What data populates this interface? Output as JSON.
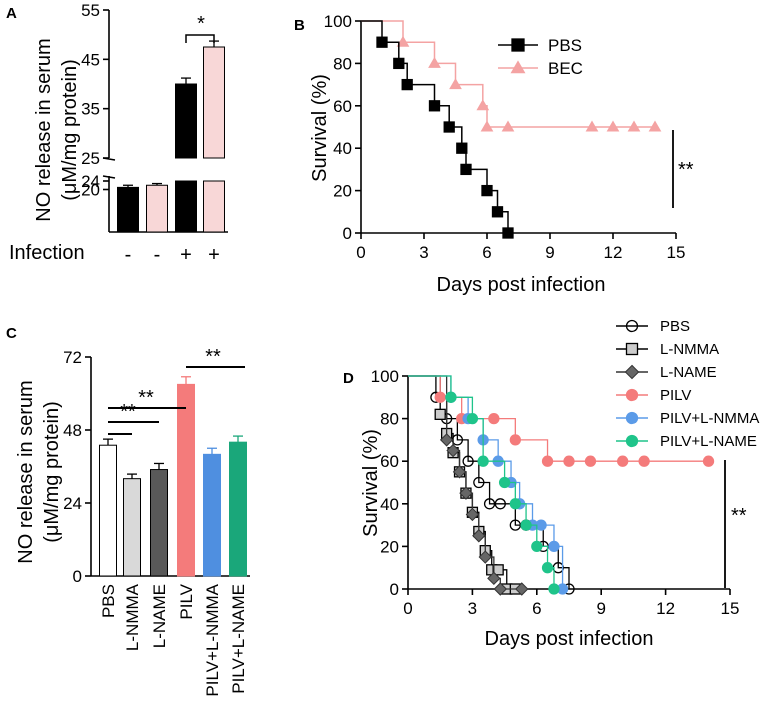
{
  "chart_data": [
    {
      "panel": "A",
      "type": "bar",
      "ylabel": "NO release in serum (μM/mg protein)",
      "xlabel": "Infection",
      "categories": [
        "-",
        "-",
        "+",
        "+"
      ],
      "values": [
        21,
        22,
        40,
        47.5
      ],
      "errors": [
        1.0,
        0.8,
        1.2,
        1.2
      ],
      "colors": [
        "#000000",
        "#f8d7d7",
        "#000000",
        "#f8d7d7"
      ],
      "y_ticks_low": [
        "20",
        "24"
      ],
      "y_ticks_high": [
        "25",
        "35",
        "45",
        "55"
      ],
      "y_break": [
        24,
        25
      ],
      "significance": "*"
    },
    {
      "panel": "B",
      "type": "line",
      "xlabel": "Days post infection",
      "ylabel": "Survival (%)",
      "xlim": [
        0,
        15
      ],
      "ylim": [
        0,
        100
      ],
      "x_ticks": [
        "0",
        "3",
        "6",
        "9",
        "12",
        "15"
      ],
      "y_ticks": [
        "0",
        "20",
        "40",
        "60",
        "80",
        "100"
      ],
      "series": [
        {
          "name": "PBS",
          "color": "#000000",
          "marker": "square",
          "x": [
            0,
            1,
            1.8,
            2.2,
            3.5,
            4.2,
            4.8,
            5.0,
            6.0,
            6.5,
            7.0
          ],
          "y": [
            100,
            90,
            80,
            70,
            60,
            50,
            40,
            30,
            20,
            10,
            0
          ]
        },
        {
          "name": "BEC",
          "color": "#f4a3a3",
          "marker": "triangle",
          "x": [
            0,
            2,
            3.5,
            4.5,
            5.8,
            6.0,
            7.0,
            11,
            12,
            13,
            14
          ],
          "y": [
            100,
            90,
            80,
            70,
            60,
            50,
            50,
            50,
            50,
            50,
            50
          ]
        }
      ],
      "significance": "**"
    },
    {
      "panel": "C",
      "type": "bar",
      "ylabel": "NO release in serum (μM/mg protein)",
      "ylim": [
        0,
        72
      ],
      "y_ticks": [
        "0",
        "24",
        "48",
        "72"
      ],
      "categories": [
        "PBS",
        "L-NMMA",
        "L-NAME",
        "PILV",
        "PILV+L-NMMA",
        "PILV+L-NAME"
      ],
      "values": [
        43,
        32,
        35,
        63,
        40,
        44
      ],
      "errors": [
        2,
        1.5,
        2,
        2.5,
        2,
        2
      ],
      "colors": [
        "#ffffff",
        "#d9d9d9",
        "#595959",
        "#f47b7b",
        "#4f8fe0",
        "#1aa77a"
      ],
      "significance": [
        "**",
        "**",
        "**",
        "**"
      ]
    },
    {
      "panel": "D",
      "type": "line",
      "xlabel": "Days post infection",
      "ylabel": "Survival (%)",
      "xlim": [
        0,
        15
      ],
      "ylim": [
        0,
        100
      ],
      "x_ticks": [
        "0",
        "3",
        "6",
        "9",
        "12",
        "15"
      ],
      "y_ticks": [
        "0",
        "20",
        "40",
        "60",
        "80",
        "100"
      ],
      "series": [
        {
          "name": "PBS",
          "color": "#000000",
          "fill": "none",
          "marker": "circle",
          "x": [
            0,
            1.3,
            1.8,
            2.3,
            2.8,
            3.3,
            3.8,
            4.3,
            5.0,
            5.5,
            6.3,
            7.0,
            7.5
          ],
          "y": [
            100,
            90,
            80,
            70,
            60,
            50,
            40,
            40,
            30,
            30,
            20,
            10,
            0
          ]
        },
        {
          "name": "L-NMMA",
          "color": "#000000",
          "fill": "#cccccc",
          "marker": "square",
          "x": [
            0,
            1.5,
            1.8,
            2.1,
            2.4,
            2.7,
            3.0,
            3.3,
            3.6,
            3.9,
            4.2,
            4.6,
            5.0
          ],
          "y": [
            100,
            82,
            73,
            64,
            55,
            45,
            36,
            27,
            18,
            9,
            9,
            0,
            0
          ]
        },
        {
          "name": "L-NAME",
          "color": "#333333",
          "fill": "#666666",
          "marker": "diamond",
          "x": [
            0,
            1.8,
            2.1,
            2.4,
            2.7,
            3.0,
            3.3,
            3.6,
            4.0,
            4.3,
            5.3
          ],
          "y": [
            100,
            70,
            65,
            55,
            45,
            35,
            25,
            15,
            5,
            0,
            0
          ]
        },
        {
          "name": "PILV",
          "color": "#f47b7b",
          "fill": "#f47b7b",
          "marker": "circle",
          "x": [
            0,
            1.5,
            2.5,
            4.0,
            5.0,
            6.5,
            7.5,
            8.5,
            10,
            11,
            14
          ],
          "y": [
            100,
            90,
            80,
            80,
            70,
            60,
            60,
            60,
            60,
            60,
            60
          ]
        },
        {
          "name": "PILV+L-NMMA",
          "color": "#5b9be8",
          "fill": "#5b9be8",
          "marker": "circle",
          "x": [
            0,
            2.0,
            2.8,
            3.5,
            4.2,
            4.8,
            5.2,
            5.8,
            6.2,
            6.8,
            7.2
          ],
          "y": [
            100,
            90,
            80,
            70,
            60,
            50,
            40,
            30,
            30,
            20,
            0
          ]
        },
        {
          "name": "PILV+L-NAME",
          "color": "#1fc48a",
          "fill": "#1fc48a",
          "marker": "circle",
          "x": [
            0,
            2.0,
            3.0,
            3.5,
            4.5,
            5.0,
            5.5,
            6.0,
            6.5,
            6.8
          ],
          "y": [
            100,
            90,
            80,
            60,
            50,
            40,
            30,
            20,
            10,
            0
          ]
        }
      ],
      "significance": "**"
    }
  ]
}
